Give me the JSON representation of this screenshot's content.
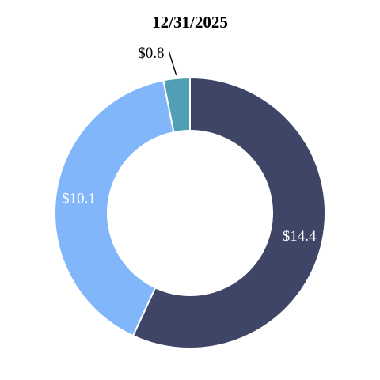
{
  "chart_data": {
    "type": "pie",
    "title": "12/31/2025",
    "donut": true,
    "slices": [
      {
        "label": "$14.4",
        "value": 14.4,
        "color": "#3f4566",
        "label_color": "#ffffff"
      },
      {
        "label": "$10.1",
        "value": 10.1,
        "color": "#82b6fb",
        "label_color": "#ffffff"
      },
      {
        "label": "$0.8",
        "value": 0.8,
        "color": "#519fb5",
        "label_color": "#000000",
        "label_outside": true
      }
    ],
    "start_angle": "12 o'clock",
    "direction": "clockwise",
    "legend": "none"
  }
}
